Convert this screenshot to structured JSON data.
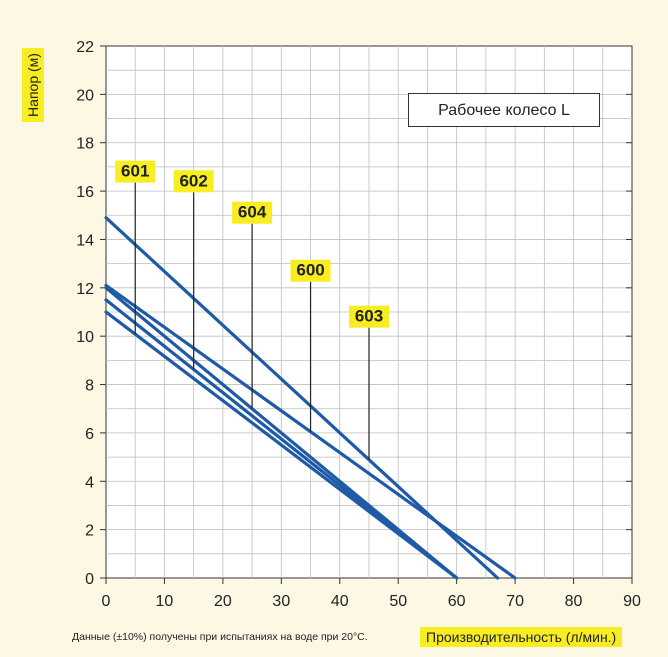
{
  "chart_data": {
    "type": "line",
    "title": "",
    "xlabel": "Производительность (л/мин.)",
    "ylabel": "Напор (м)",
    "xlim": [
      0,
      90
    ],
    "ylim": [
      0,
      22
    ],
    "x_ticks": [
      "0",
      "10",
      "20",
      "30",
      "40",
      "50",
      "60",
      "70",
      "80",
      "90"
    ],
    "y_ticks": [
      "0",
      "2",
      "4",
      "6",
      "8",
      "10",
      "12",
      "14",
      "16",
      "18",
      "20",
      "22"
    ],
    "grid": true,
    "annotation_box": "Рабочее колесо L",
    "footnote": "Данные (±10%) получены при испытаниях на воде при 20°C.",
    "line_color": "#1f5aa6",
    "highlight_color": "#f8ed22",
    "series": [
      {
        "name": "601",
        "x": [
          0,
          60
        ],
        "y": [
          11.0,
          0
        ],
        "label_x": 5,
        "label_y": 16.6
      },
      {
        "name": "602",
        "x": [
          0,
          60
        ],
        "y": [
          11.5,
          0
        ],
        "label_x": 15,
        "label_y": 16.2
      },
      {
        "name": "604",
        "x": [
          0,
          60
        ],
        "y": [
          12.0,
          0
        ],
        "label_x": 25,
        "label_y": 14.9
      },
      {
        "name": "600",
        "x": [
          0,
          70
        ],
        "y": [
          12.1,
          0
        ],
        "label_x": 35,
        "label_y": 12.5
      },
      {
        "name": "603",
        "x": [
          0,
          67
        ],
        "y": [
          14.9,
          0
        ],
        "label_x": 45,
        "label_y": 10.6
      }
    ]
  }
}
